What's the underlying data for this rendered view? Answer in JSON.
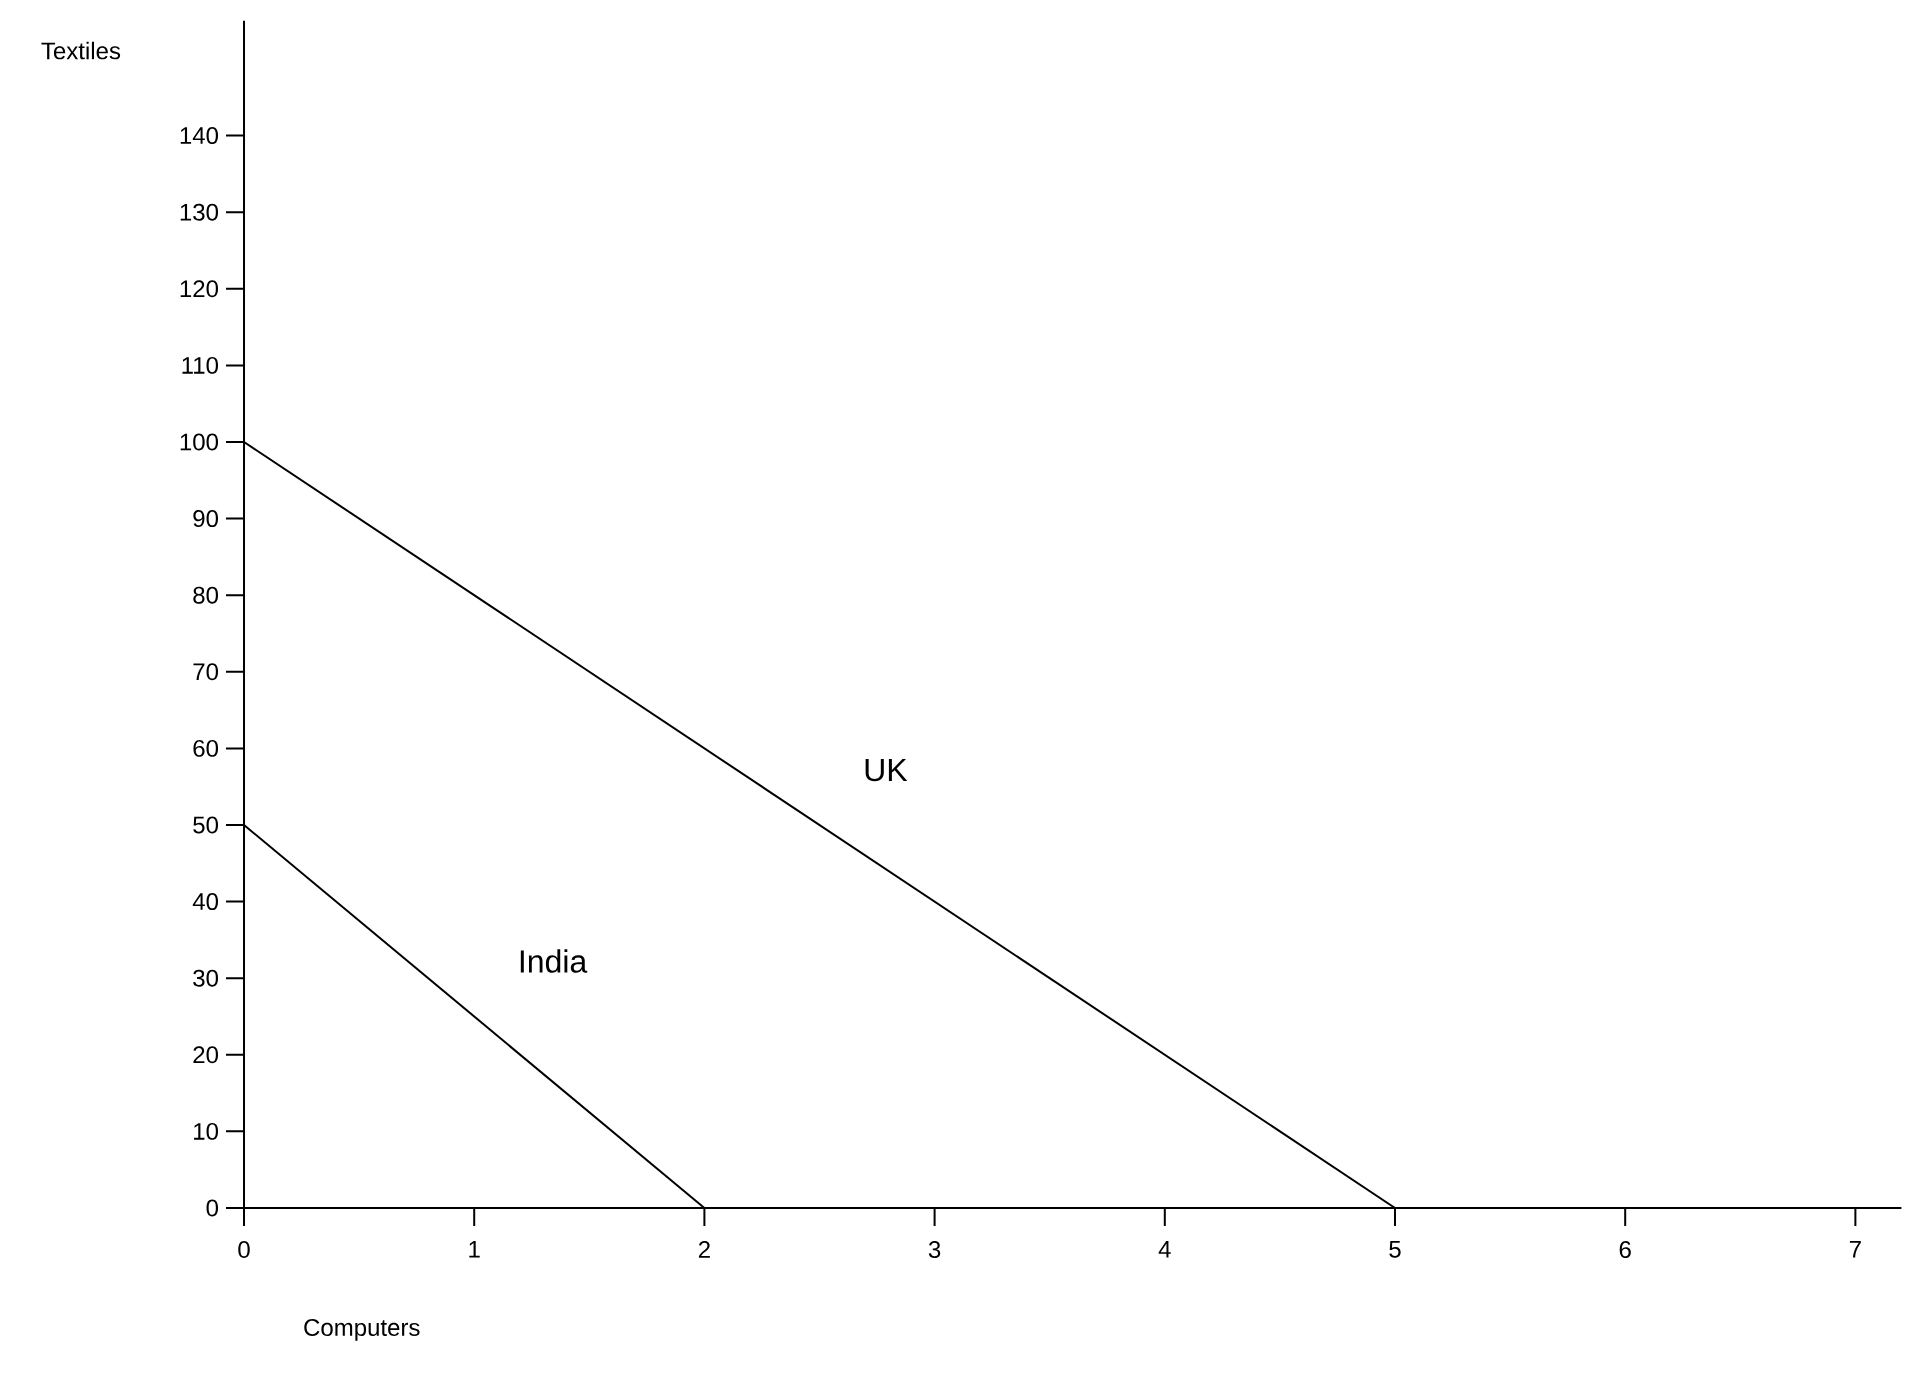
{
  "chart_data": {
    "type": "line",
    "xlabel": "Computers",
    "ylabel": "Textiles",
    "series": [
      {
        "name": "UK",
        "color": "#000000",
        "x": [
          0,
          5
        ],
        "values": [
          100,
          0
        ]
      },
      {
        "name": "India",
        "color": "#000000",
        "x": [
          0,
          2
        ],
        "values": [
          50,
          0
        ]
      }
    ],
    "xlim": [
      0,
      7.2
    ],
    "ylim": [
      0,
      155
    ],
    "xticks": [
      0,
      1,
      2,
      3,
      4,
      5,
      6,
      7
    ],
    "yticks": [
      0,
      10,
      20,
      30,
      40,
      50,
      60,
      70,
      80,
      90,
      100,
      110,
      120,
      130,
      140
    ],
    "grid": false,
    "legend": false,
    "marker": "none",
    "line_style": "solid"
  }
}
